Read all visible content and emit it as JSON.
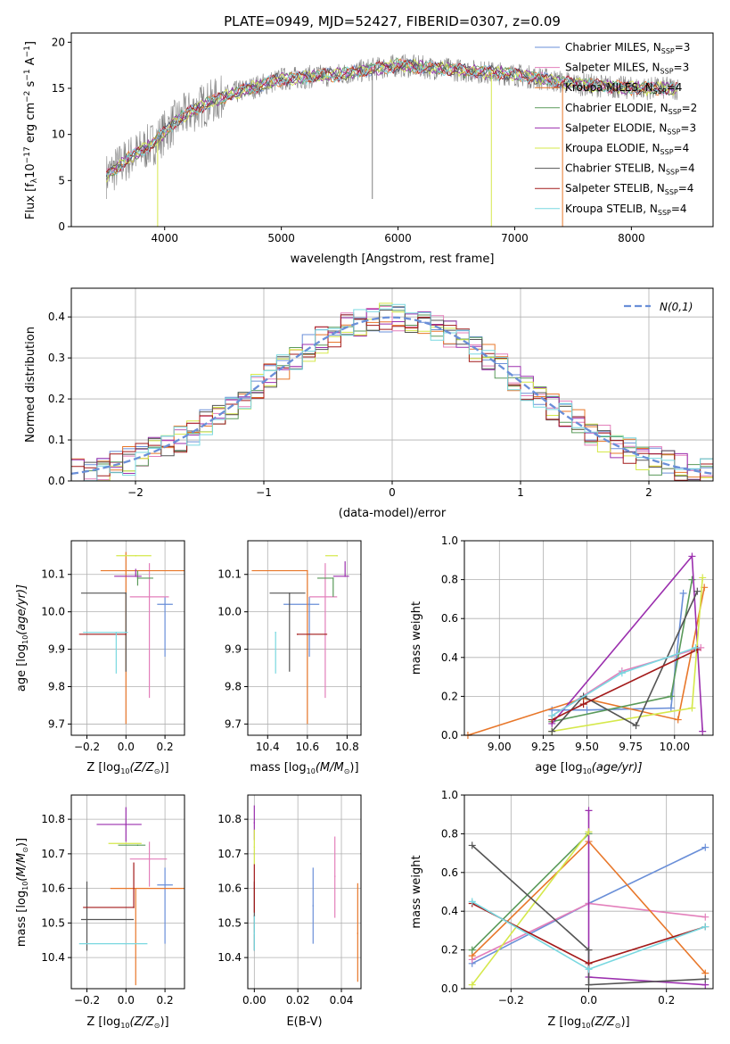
{
  "title": "PLATE=0949, MJD=52427, FIBERID=0307, z=0.09",
  "colors": {
    "Chabrier MILES": "#6a8fd8",
    "Salpeter MILES": "#e37fbb",
    "Kroupa MILES": "#e8772a",
    "Chabrier ELODIE": "#5a9a5a",
    "Salpeter ELODIE": "#9b2fae",
    "Kroupa ELODIE": "#d5e84a",
    "Chabrier STELIB": "#555555",
    "Salpeter STELIB": "#a31a1a",
    "Kroupa STELIB": "#79d8e0",
    "gauss": "#6a8fd8",
    "spectrum": "#808080"
  },
  "chart_data": [
    {
      "type": "line",
      "panel": "spectrum",
      "xlabel": "wavelength [Angstrom, rest frame]",
      "ylabel": "Flux [f",
      "ylabel_sub": "λ",
      "ylabel_rest": "10",
      "ylabel_exp1": "−17",
      "ylabel_mid": " erg cm",
      "ylabel_exp2": "−2",
      "ylabel_mid2": " s",
      "ylabel_exp3": "−1",
      "ylabel_mid3": " A",
      "ylabel_exp4": "−1",
      "ylabel_end": "]",
      "xlim": [
        3200,
        8700
      ],
      "ylim": [
        0,
        21
      ],
      "xticks": [
        4000,
        5000,
        6000,
        7000,
        8000
      ],
      "yticks": [
        0,
        5,
        10,
        15,
        20
      ],
      "continuum": [
        [
          3500,
          5.5
        ],
        [
          3700,
          7.5
        ],
        [
          3900,
          9
        ],
        [
          4100,
          11.5
        ],
        [
          4300,
          13
        ],
        [
          4600,
          14.5
        ],
        [
          5000,
          16
        ],
        [
          5500,
          16.5
        ],
        [
          6000,
          17.5
        ],
        [
          6500,
          17
        ],
        [
          7000,
          16.5
        ],
        [
          7500,
          15.5
        ],
        [
          8000,
          15
        ],
        [
          8400,
          15
        ]
      ],
      "legend": [
        {
          "name": "Chabrier MILES, N",
          "sub": "SSP",
          "tail": "=3",
          "key": "Chabrier MILES"
        },
        {
          "name": "Salpeter MILES, N",
          "sub": "SSP",
          "tail": "=3",
          "key": "Salpeter MILES"
        },
        {
          "name": "Kroupa MILES, N",
          "sub": "SSP",
          "tail": "=4",
          "key": "Kroupa MILES"
        },
        {
          "name": "Chabrier ELODIE, N",
          "sub": "SSP",
          "tail": "=2",
          "key": "Chabrier ELODIE"
        },
        {
          "name": "Salpeter ELODIE, N",
          "sub": "SSP",
          "tail": "=3",
          "key": "Salpeter ELODIE"
        },
        {
          "name": "Kroupa ELODIE, N",
          "sub": "SSP",
          "tail": "=4",
          "key": "Kroupa ELODIE"
        },
        {
          "name": "Chabrier STELIB, N",
          "sub": "SSP",
          "tail": "=4",
          "key": "Chabrier STELIB"
        },
        {
          "name": "Salpeter STELIB, N",
          "sub": "SSP",
          "tail": "=4",
          "key": "Salpeter STELIB"
        },
        {
          "name": "Kroupa STELIB, N",
          "sub": "SSP",
          "tail": "=4",
          "key": "Kroupa STELIB"
        }
      ]
    },
    {
      "type": "histogram",
      "panel": "residuals",
      "xlabel": "(data-model)/error",
      "ylabel": "Normed distribution",
      "xlim": [
        -2.5,
        2.5
      ],
      "ylim": [
        0,
        0.47
      ],
      "xticks": [
        -2,
        -1,
        0,
        1,
        2
      ],
      "yticks": [
        0.0,
        0.1,
        0.2,
        0.3,
        0.4
      ],
      "legend_label": "N(0,1)",
      "bin_width": 0.1
    },
    {
      "type": "errorbar",
      "panel": "age-vs-Z",
      "xlabel": "Z [log",
      "xlabel_tail": "(Z/Z",
      "ylabel": "age  [log",
      "ylabel_tail": "(age/yr)]",
      "xlim": [
        -0.28,
        0.3
      ],
      "ylim": [
        9.67,
        10.19
      ],
      "xticks": [
        -0.2,
        0.0,
        0.2
      ],
      "yticks": [
        9.7,
        9.8,
        9.9,
        10.0,
        10.1
      ],
      "points": [
        {
          "key": "Chabrier MILES",
          "x": 0.2,
          "xerr": [
            0.04,
            0.04
          ],
          "y": 10.02,
          "yerr": [
            0.14,
            0.02
          ]
        },
        {
          "key": "Salpeter MILES",
          "x": 0.12,
          "xerr": [
            0.1,
            0.1
          ],
          "y": 10.04,
          "yerr": [
            0.27,
            0.09
          ]
        },
        {
          "key": "Kroupa MILES",
          "x": 0.0,
          "xerr": [
            0.13,
            0.3
          ],
          "y": 10.11,
          "yerr": [
            0.41,
            0.05
          ]
        },
        {
          "key": "Chabrier ELODIE",
          "x": 0.06,
          "xerr": [
            0.0,
            0.08
          ],
          "y": 10.09,
          "yerr": [
            0.02,
            0.02
          ]
        },
        {
          "key": "Salpeter ELODIE",
          "x": 0.05,
          "xerr": [
            0.11,
            0.03
          ],
          "y": 10.095,
          "yerr": [
            0.0,
            0.02
          ]
        },
        {
          "key": "Kroupa ELODIE",
          "x": 0.05,
          "xerr": [
            0.1,
            0.08
          ],
          "y": 10.15,
          "yerr": [
            0.0,
            0.0
          ]
        },
        {
          "key": "Chabrier STELIB",
          "x": 0.0,
          "xerr": [
            0.23,
            0.0
          ],
          "y": 10.05,
          "yerr": [
            0.21,
            0.0
          ]
        },
        {
          "key": "Salpeter STELIB",
          "x": 0.0,
          "xerr": [
            0.24,
            0.0
          ],
          "y": 9.94,
          "yerr": [
            0.0,
            0.0
          ]
        },
        {
          "key": "Kroupa STELIB",
          "x": -0.05,
          "xerr": [
            0.17,
            0.06
          ],
          "y": 9.945,
          "yerr": [
            0.11,
            0.0
          ]
        }
      ]
    },
    {
      "type": "errorbar",
      "panel": "age-vs-mass",
      "xlabel": "mass [log",
      "xlabel_tail": "(M/M",
      "xlim": [
        10.3,
        10.87
      ],
      "ylim": [
        9.67,
        10.19
      ],
      "xticks": [
        10.4,
        10.6,
        10.8
      ],
      "yticks": [
        9.7,
        9.8,
        9.9,
        10.0,
        10.1
      ],
      "points": [
        {
          "key": "Chabrier MILES",
          "x": 10.61,
          "xerr": [
            0.13,
            0.05
          ],
          "y": 10.02,
          "yerr": [
            0.14,
            0.02
          ]
        },
        {
          "key": "Salpeter MILES",
          "x": 10.69,
          "xerr": [
            0.08,
            0.06
          ],
          "y": 10.04,
          "yerr": [
            0.27,
            0.09
          ]
        },
        {
          "key": "Kroupa MILES",
          "x": 10.6,
          "xerr": [
            0.28,
            0.0
          ],
          "y": 10.11,
          "yerr": [
            0.41,
            0.0
          ]
        },
        {
          "key": "Chabrier ELODIE",
          "x": 10.73,
          "xerr": [
            0.08,
            0.0
          ],
          "y": 10.09,
          "yerr": [
            0.05,
            0.0
          ]
        },
        {
          "key": "Salpeter ELODIE",
          "x": 10.79,
          "xerr": [
            0.06,
            0.02
          ],
          "y": 10.095,
          "yerr": [
            0.0,
            0.04
          ]
        },
        {
          "key": "Kroupa ELODIE",
          "x": 10.75,
          "xerr": [
            0.06,
            0.0
          ],
          "y": 10.15,
          "yerr": [
            0.0,
            0.0
          ]
        },
        {
          "key": "Chabrier STELIB",
          "x": 10.51,
          "xerr": [
            0.1,
            0.08
          ],
          "y": 10.05,
          "yerr": [
            0.21,
            0.0
          ]
        },
        {
          "key": "Salpeter STELIB",
          "x": 10.55,
          "xerr": [
            0.0,
            0.15
          ],
          "y": 9.94,
          "yerr": [
            0.0,
            0.0
          ]
        },
        {
          "key": "Kroupa STELIB",
          "x": 10.44,
          "xerr": [
            0.0,
            0.0
          ],
          "y": 9.945,
          "yerr": [
            0.11,
            0.0
          ]
        }
      ]
    },
    {
      "type": "line",
      "panel": "weight-vs-age",
      "xlabel": "age  [log",
      "xlabel_tail": "(age/yr)]",
      "ylabel": "mass weight",
      "xlim": [
        8.8,
        10.22
      ],
      "ylim": [
        0,
        1.0
      ],
      "xticks": [
        9.0,
        9.25,
        9.5,
        9.75,
        10.0
      ],
      "yticks": [
        0.0,
        0.2,
        0.4,
        0.6,
        0.8,
        1.0
      ],
      "series": [
        {
          "key": "Chabrier MILES",
          "points": [
            [
              9.3,
              0.13
            ],
            [
              9.5,
              0.13
            ],
            [
              9.98,
              0.14
            ],
            [
              10.05,
              0.73
            ]
          ]
        },
        {
          "key": "Salpeter MILES",
          "points": [
            [
              9.3,
              0.1
            ],
            [
              9.7,
              0.33
            ],
            [
              10.15,
              0.45
            ]
          ]
        },
        {
          "key": "Kroupa MILES",
          "points": [
            [
              8.82,
              0.0
            ],
            [
              9.48,
              0.19
            ],
            [
              10.02,
              0.08
            ],
            [
              10.17,
              0.76
            ]
          ]
        },
        {
          "key": "Chabrier ELODIE",
          "points": [
            [
              9.3,
              0.07
            ],
            [
              9.98,
              0.2
            ],
            [
              10.1,
              0.8
            ]
          ]
        },
        {
          "key": "Salpeter ELODIE",
          "points": [
            [
              9.3,
              0.06
            ],
            [
              10.1,
              0.92
            ],
            [
              10.16,
              0.02
            ]
          ]
        },
        {
          "key": "Kroupa ELODIE",
          "points": [
            [
              9.3,
              0.02
            ],
            [
              10.1,
              0.14
            ],
            [
              10.16,
              0.81
            ]
          ]
        },
        {
          "key": "Chabrier STELIB",
          "points": [
            [
              9.3,
              0.02
            ],
            [
              9.48,
              0.2
            ],
            [
              9.78,
              0.05
            ],
            [
              10.13,
              0.74
            ]
          ]
        },
        {
          "key": "Salpeter STELIB",
          "points": [
            [
              9.3,
              0.08
            ],
            [
              9.48,
              0.16
            ],
            [
              10.13,
              0.44
            ]
          ]
        },
        {
          "key": "Kroupa STELIB",
          "points": [
            [
              9.3,
              0.1
            ],
            [
              9.7,
              0.32
            ],
            [
              10.12,
              0.45
            ]
          ]
        }
      ]
    },
    {
      "type": "errorbar",
      "panel": "mass-vs-Z",
      "xlabel": "Z [log",
      "xlabel_tail": "(Z/Z",
      "ylabel": "mass [log",
      "ylabel_tail": "(M/M",
      "xlim": [
        -0.28,
        0.3
      ],
      "ylim": [
        10.31,
        10.87
      ],
      "xticks": [
        -0.2,
        0.0,
        0.2
      ],
      "yticks": [
        10.4,
        10.5,
        10.6,
        10.7,
        10.8
      ],
      "points": [
        {
          "key": "Chabrier MILES",
          "x": 0.2,
          "xerr": [
            0.04,
            0.04
          ],
          "y": 10.61,
          "yerr": [
            0.17,
            0.05
          ]
        },
        {
          "key": "Salpeter MILES",
          "x": 0.12,
          "xerr": [
            0.1,
            0.09
          ],
          "y": 10.685,
          "yerr": [
            0.08,
            0.05
          ]
        },
        {
          "key": "Kroupa MILES",
          "x": 0.05,
          "xerr": [
            0.13,
            0.25
          ],
          "y": 10.6,
          "yerr": [
            0.28,
            0.0
          ]
        },
        {
          "key": "Chabrier ELODIE",
          "x": 0.06,
          "xerr": [
            0.1,
            0.04
          ],
          "y": 10.725,
          "yerr": [
            0.0,
            0.0
          ]
        },
        {
          "key": "Salpeter ELODIE",
          "x": 0.0,
          "xerr": [
            0.15,
            0.08
          ],
          "y": 10.785,
          "yerr": [
            0.05,
            0.05
          ]
        },
        {
          "key": "Kroupa ELODIE",
          "x": 0.0,
          "xerr": [
            0.09,
            0.08
          ],
          "y": 10.73,
          "yerr": [
            0.0,
            0.0
          ]
        },
        {
          "key": "Chabrier STELIB",
          "x": -0.2,
          "xerr": [
            0.03,
            0.24
          ],
          "y": 10.51,
          "yerr": [
            0.09,
            0.11
          ]
        },
        {
          "key": "Salpeter STELIB",
          "x": 0.04,
          "xerr": [
            0.26,
            0.0
          ],
          "y": 10.545,
          "yerr": [
            0.0,
            0.13
          ]
        },
        {
          "key": "Kroupa STELIB",
          "x": 0.0,
          "xerr": [
            0.24,
            0.11
          ],
          "y": 10.44,
          "yerr": [
            0.0,
            0.0
          ]
        }
      ]
    },
    {
      "type": "errorbar",
      "panel": "mass-vs-EBV",
      "xlabel": "E(B-V)",
      "xlim": [
        -0.003,
        0.049
      ],
      "ylim": [
        10.31,
        10.87
      ],
      "xticks": [
        0.0,
        0.02,
        0.04
      ],
      "yticks": [
        10.4,
        10.5,
        10.6,
        10.7,
        10.8
      ],
      "points": [
        {
          "key": "Chabrier MILES",
          "x": 0.027,
          "y": 10.55,
          "yerr": [
            0.11,
            0.11
          ]
        },
        {
          "key": "Salpeter MILES",
          "x": 0.037,
          "y": 10.635,
          "yerr": [
            0.12,
            0.115
          ]
        },
        {
          "key": "Kroupa MILES",
          "x": 0.0475,
          "y": 10.47,
          "yerr": [
            0.14,
            0.145
          ]
        },
        {
          "key": "Chabrier ELODIE",
          "x": 0.0,
          "y": 10.7,
          "yerr": [
            0.0,
            0.0
          ]
        },
        {
          "key": "Salpeter ELODIE",
          "x": 0.0,
          "y": 10.79,
          "yerr": [
            0.05,
            0.05
          ]
        },
        {
          "key": "Kroupa ELODIE",
          "x": 0.0,
          "y": 10.72,
          "yerr": [
            0.05,
            0.05
          ]
        },
        {
          "key": "Chabrier STELIB",
          "x": 0.0,
          "y": 10.52,
          "yerr": [
            0.1,
            0.1
          ]
        },
        {
          "key": "Salpeter STELIB",
          "x": 0.0,
          "y": 10.6,
          "yerr": [
            0.07,
            0.07
          ]
        },
        {
          "key": "Kroupa STELIB",
          "x": 0.0,
          "y": 10.47,
          "yerr": [
            0.05,
            0.05
          ]
        }
      ]
    },
    {
      "type": "line",
      "panel": "weight-vs-Z",
      "xlabel": "Z [log",
      "xlabel_tail": "(Z/Z",
      "ylabel": "mass weight",
      "xlim": [
        -0.32,
        0.32
      ],
      "ylim": [
        0,
        1.0
      ],
      "xticks": [
        -0.2,
        0.0,
        0.2
      ],
      "yticks": [
        0.0,
        0.2,
        0.4,
        0.6,
        0.8,
        1.0
      ],
      "series": [
        {
          "key": "Chabrier MILES",
          "points": [
            [
              -0.3,
              0.13
            ],
            [
              0.0,
              0.44
            ],
            [
              0.3,
              0.73
            ]
          ]
        },
        {
          "key": "Salpeter MILES",
          "points": [
            [
              -0.3,
              0.15
            ],
            [
              0.0,
              0.44
            ],
            [
              0.3,
              0.37
            ]
          ]
        },
        {
          "key": "Kroupa MILES",
          "points": [
            [
              -0.3,
              0.17
            ],
            [
              0.0,
              0.76
            ],
            [
              0.3,
              0.08
            ]
          ]
        },
        {
          "key": "Chabrier ELODIE",
          "points": [
            [
              -0.3,
              0.2
            ],
            [
              0.0,
              0.8
            ]
          ]
        },
        {
          "key": "Salpeter ELODIE",
          "points": [
            [
              0.0,
              0.92
            ],
            [
              0.0,
              0.06
            ],
            [
              0.3,
              0.02
            ]
          ]
        },
        {
          "key": "Kroupa ELODIE",
          "points": [
            [
              -0.3,
              0.02
            ],
            [
              0.0,
              0.81
            ]
          ]
        },
        {
          "key": "Chabrier STELIB",
          "points": [
            [
              -0.3,
              0.74
            ],
            [
              0.0,
              0.2
            ],
            [
              0.0,
              0.02
            ],
            [
              0.3,
              0.05
            ]
          ]
        },
        {
          "key": "Salpeter STELIB",
          "points": [
            [
              -0.3,
              0.44
            ],
            [
              0.0,
              0.13
            ],
            [
              0.3,
              0.32
            ]
          ]
        },
        {
          "key": "Kroupa STELIB",
          "points": [
            [
              -0.3,
              0.45
            ],
            [
              0.0,
              0.1
            ],
            [
              0.3,
              0.32
            ]
          ]
        }
      ]
    }
  ]
}
